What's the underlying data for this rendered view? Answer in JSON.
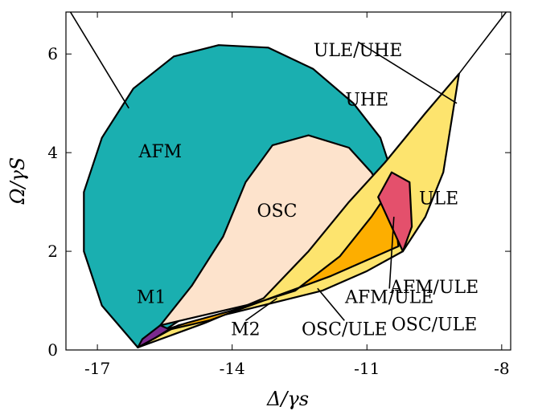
{
  "chart_data": {
    "type": "area",
    "title": "",
    "xlabel": "Δ/γs",
    "ylabel": "Ω/γS",
    "xlim": [
      -17.7,
      -7.8
    ],
    "ylim": [
      0,
      6.85
    ],
    "xticks": [
      -17,
      -14,
      -11,
      -8
    ],
    "yticks": [
      0,
      2,
      4,
      6
    ],
    "grid": false,
    "legend": "none",
    "regions": [
      {
        "name": "AFM",
        "color": "#1aafb0",
        "label_at": [
          -15.6,
          4.0
        ],
        "points": [
          [
            -16.1,
            0.05
          ],
          [
            -16.9,
            0.9
          ],
          [
            -17.3,
            2.0
          ],
          [
            -17.3,
            3.2
          ],
          [
            -16.9,
            4.3
          ],
          [
            -16.2,
            5.3
          ],
          [
            -15.3,
            5.95
          ],
          [
            -14.3,
            6.18
          ],
          [
            -13.2,
            6.13
          ],
          [
            -12.2,
            5.7
          ],
          [
            -11.3,
            5.0
          ],
          [
            -10.7,
            4.3
          ],
          [
            -10.45,
            3.6
          ],
          [
            -10.6,
            3.3
          ],
          [
            -16.1,
            0.05
          ]
        ]
      },
      {
        "name": "OSC",
        "color": "#fde3cc",
        "label_at": [
          -13.0,
          2.8
        ],
        "points": [
          [
            -15.6,
            0.5
          ],
          [
            -14.9,
            1.3
          ],
          [
            -14.2,
            2.3
          ],
          [
            -13.7,
            3.4
          ],
          [
            -13.1,
            4.15
          ],
          [
            -12.3,
            4.35
          ],
          [
            -11.4,
            4.1
          ],
          [
            -10.9,
            3.6
          ],
          [
            -10.7,
            3.3
          ],
          [
            -12.3,
            1.2
          ],
          [
            -15.6,
            0.5
          ]
        ]
      },
      {
        "name": "ULE",
        "color": "#fde46e",
        "label_at": [
          -9.4,
          3.05
        ],
        "points": [
          [
            -16.1,
            0.05
          ],
          [
            -15.2,
            0.5
          ],
          [
            -14.0,
            0.75
          ],
          [
            -12.0,
            1.2
          ],
          [
            -11.0,
            1.6
          ],
          [
            -10.2,
            2.0
          ],
          [
            -9.7,
            2.7
          ],
          [
            -9.3,
            3.6
          ],
          [
            -8.95,
            5.6
          ],
          [
            -9.7,
            4.8
          ],
          [
            -10.6,
            3.8
          ],
          [
            -11.4,
            3.0
          ],
          [
            -12.3,
            2.0
          ],
          [
            -13.3,
            1.05
          ],
          [
            -14.6,
            0.55
          ],
          [
            -16.1,
            0.05
          ]
        ]
      },
      {
        "name": "OSC/ULE",
        "color": "#fdae00",
        "label_at": [
          -9.5,
          0.5
        ],
        "points": [
          [
            -15.7,
            0.35
          ],
          [
            -15.0,
            0.55
          ],
          [
            -14.0,
            0.8
          ],
          [
            -12.6,
            1.2
          ],
          [
            -11.6,
            1.9
          ],
          [
            -10.9,
            2.7
          ],
          [
            -10.45,
            3.3
          ],
          [
            -10.3,
            2.1
          ],
          [
            -11.8,
            1.5
          ],
          [
            -13.0,
            1.1
          ],
          [
            -14.5,
            0.6
          ],
          [
            -15.7,
            0.35
          ]
        ]
      },
      {
        "name": "AFM/ULE",
        "color": "#e4506c",
        "label_at": [
          -9.5,
          1.25
        ],
        "points": [
          [
            -10.75,
            3.1
          ],
          [
            -10.45,
            3.6
          ],
          [
            -10.05,
            3.4
          ],
          [
            -10.0,
            2.5
          ],
          [
            -10.2,
            2.0
          ],
          [
            -10.75,
            3.1
          ]
        ]
      },
      {
        "name": "M1",
        "color": "#7b2a8e",
        "label_at": [
          -15.8,
          1.05
        ],
        "points": [
          [
            -16.1,
            0.05
          ],
          [
            -15.7,
            0.25
          ],
          [
            -15.4,
            0.42
          ],
          [
            -15.6,
            0.5
          ],
          [
            -16.0,
            0.22
          ],
          [
            -16.1,
            0.05
          ]
        ]
      }
    ],
    "boundary_lines": [
      {
        "name": "left-boundary",
        "points": [
          [
            -17.7,
            7.0
          ],
          [
            -16.3,
            4.9
          ]
        ]
      },
      {
        "name": "right-boundary",
        "points": [
          [
            -8.95,
            5.6
          ],
          [
            -7.9,
            6.85
          ]
        ]
      }
    ],
    "annotations": [
      {
        "text": "UHE",
        "at": [
          -11.0,
          5.05
        ]
      },
      {
        "text": "ULE/UHE",
        "at": [
          -11.2,
          6.05
        ],
        "arrow_to": [
          -9.0,
          5.0
        ]
      },
      {
        "text": "M2",
        "at": [
          -13.7,
          0.4
        ],
        "arrow_to": [
          -13.0,
          1.05
        ]
      },
      {
        "text": "OSC/ULE",
        "at": [
          -11.5,
          0.4
        ],
        "arrow_to": [
          -12.1,
          1.25
        ]
      },
      {
        "text": "AFM/ULE",
        "at": [
          -10.5,
          1.05
        ],
        "arrow_to": [
          -10.4,
          2.7
        ]
      }
    ]
  }
}
